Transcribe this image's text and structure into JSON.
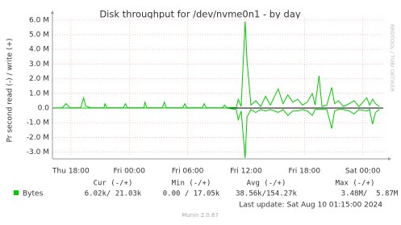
{
  "chart_data": {
    "type": "line",
    "title": "Disk throughput for /dev/nvme0n1 - by day",
    "y_label": "Pr second read (-) / write (+)",
    "watermark": "RRDTOOL / TOBI OETIKER",
    "xlim": [
      16.1,
      50.1
    ],
    "xticks": [
      {
        "value": 18,
        "label": "Thu 18:00"
      },
      {
        "value": 24,
        "label": "Fri 00:00"
      },
      {
        "value": 30,
        "label": "Fri 06:00"
      },
      {
        "value": 36,
        "label": "Fri 12:00"
      },
      {
        "value": 42,
        "label": "Fri 18:00"
      },
      {
        "value": 48,
        "label": "Sat 00:00"
      }
    ],
    "ylim": [
      -3300000,
      6100000
    ],
    "yticks": [
      {
        "value": -3000000,
        "label": "-3.0 M"
      },
      {
        "value": -2000000,
        "label": "-2.0 M"
      },
      {
        "value": -1000000,
        "label": "-1.0 M"
      },
      {
        "value": 0,
        "label": "0.0"
      },
      {
        "value": 1000000,
        "label": "1.0 M"
      },
      {
        "value": 2000000,
        "label": "2.0 M"
      },
      {
        "value": 3000000,
        "label": "3.0 M"
      },
      {
        "value": 4000000,
        "label": "4.0 M"
      },
      {
        "value": 5000000,
        "label": "5.0 M"
      },
      {
        "value": 6000000,
        "label": "6.0 M"
      }
    ],
    "grid": true,
    "x": [
      16.2,
      17.1,
      17.5,
      17.9,
      19.0,
      19.3,
      19.5,
      20.0,
      21.4,
      21.5,
      21.7,
      23.4,
      23.6,
      23.8,
      25.5,
      25.6,
      25.8,
      27.4,
      27.6,
      27.8,
      29.5,
      29.7,
      29.9,
      31.5,
      31.7,
      31.9,
      33.6,
      33.8,
      34.0,
      35.0,
      35.2,
      35.5,
      35.9,
      36.1,
      36.5,
      37.0,
      37.5,
      38.0,
      38.5,
      39.3,
      39.8,
      40.3,
      40.8,
      41.3,
      41.8,
      42.3,
      42.8,
      43.1,
      43.5,
      43.8,
      44.3,
      44.8,
      45.1,
      45.5,
      46.0,
      46.6,
      47.1,
      47.6,
      48.4,
      48.7,
      49.0,
      49.3,
      49.7
    ],
    "series": [
      {
        "name": "Bytes",
        "color": "#00cc00",
        "values": [
          15000,
          15000,
          300000,
          20000,
          20000,
          700000,
          150000,
          20000,
          20000,
          300000,
          20000,
          20000,
          300000,
          20000,
          20000,
          400000,
          20000,
          20000,
          400000,
          20000,
          20000,
          300000,
          20000,
          20000,
          300000,
          20000,
          20000,
          200000,
          20000,
          50000,
          600000,
          100000,
          5900000,
          3200000,
          200000,
          500000,
          100000,
          800000,
          200000,
          1300000,
          300000,
          900000,
          400000,
          600000,
          200000,
          400000,
          1000000,
          200000,
          2200000,
          100000,
          200000,
          1400000,
          300000,
          500000,
          100000,
          300000,
          500000,
          100000,
          700000,
          200000,
          600000,
          300000,
          100000
        ],
        "read_values": [
          0,
          0,
          0,
          0,
          0,
          0,
          0,
          0,
          0,
          0,
          0,
          0,
          0,
          0,
          0,
          0,
          0,
          0,
          0,
          0,
          0,
          0,
          0,
          0,
          0,
          0,
          0,
          0,
          0,
          -100000,
          -800000,
          -200000,
          -3400000,
          -600000,
          -100000,
          -300000,
          -100000,
          -200000,
          -100000,
          -300000,
          -100000,
          -500000,
          -200000,
          -200000,
          -100000,
          -200000,
          -500000,
          -100000,
          -100000,
          -100000,
          -100000,
          -1400000,
          -200000,
          -100000,
          -100000,
          -200000,
          -400000,
          -100000,
          -200000,
          -100000,
          -1100000,
          -300000,
          -100000
        ]
      }
    ],
    "legend_table": {
      "headers": [
        "Cur (-/+)",
        "Min (-/+)",
        "Avg (-/+)",
        "Max (-/+)"
      ],
      "cells": [
        "6.02k/ 21.03k",
        "0.00 / 17.05k",
        "38.56k/154.27k",
        "3.48M/  5.87M"
      ]
    },
    "last_update": "Last update: Sat Aug 10 01:15:00 2024",
    "footer": "Munin 2.0.67"
  }
}
